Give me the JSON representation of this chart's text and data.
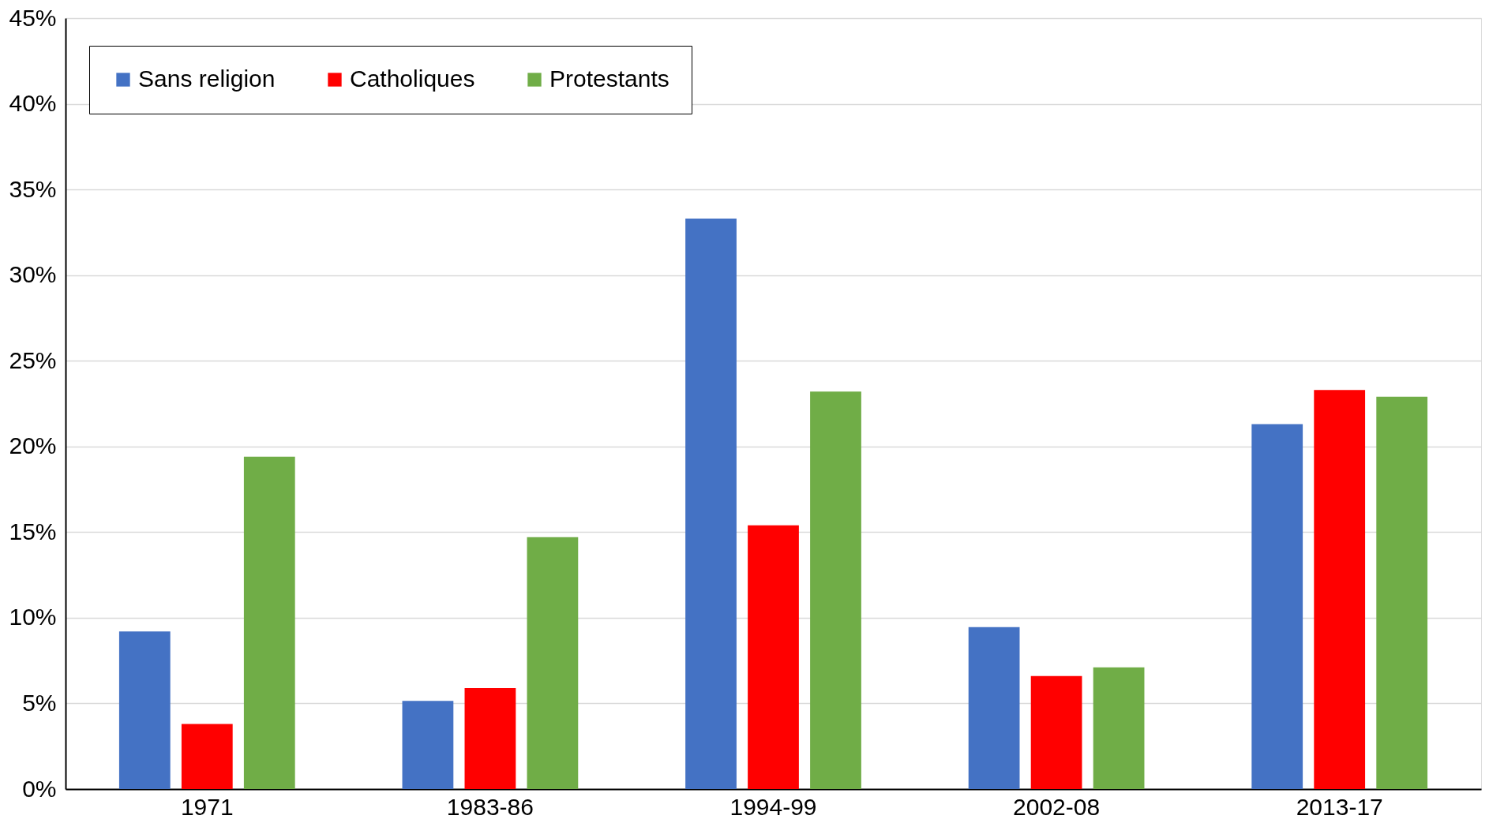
{
  "chart_data": {
    "type": "bar",
    "categories": [
      "1971",
      "1983-86",
      "1994-99",
      "2002-08",
      "2013-17"
    ],
    "series": [
      {
        "name": "Sans religion",
        "color": "#4472c4",
        "values": [
          9.2,
          5.15,
          33.3,
          9.45,
          21.3
        ]
      },
      {
        "name": "Catholiques",
        "color": "#ff0000",
        "values": [
          3.8,
          5.9,
          15.4,
          6.6,
          23.3
        ]
      },
      {
        "name": "Protestants",
        "color": "#70ad47",
        "values": [
          19.4,
          14.7,
          23.2,
          7.1,
          22.9
        ]
      }
    ],
    "ylim": [
      0,
      45
    ],
    "yticks": [
      {
        "value": 0,
        "label": "0%"
      },
      {
        "value": 5,
        "label": "5%"
      },
      {
        "value": 10,
        "label": "10%"
      },
      {
        "value": 15,
        "label": "15%"
      },
      {
        "value": 20,
        "label": "20%"
      },
      {
        "value": 25,
        "label": "25%"
      },
      {
        "value": 30,
        "label": "30%"
      },
      {
        "value": 35,
        "label": "35%"
      },
      {
        "value": 40,
        "label": "40%"
      },
      {
        "value": 45,
        "label": "45%"
      }
    ],
    "grid": "y",
    "legend": "top left"
  }
}
